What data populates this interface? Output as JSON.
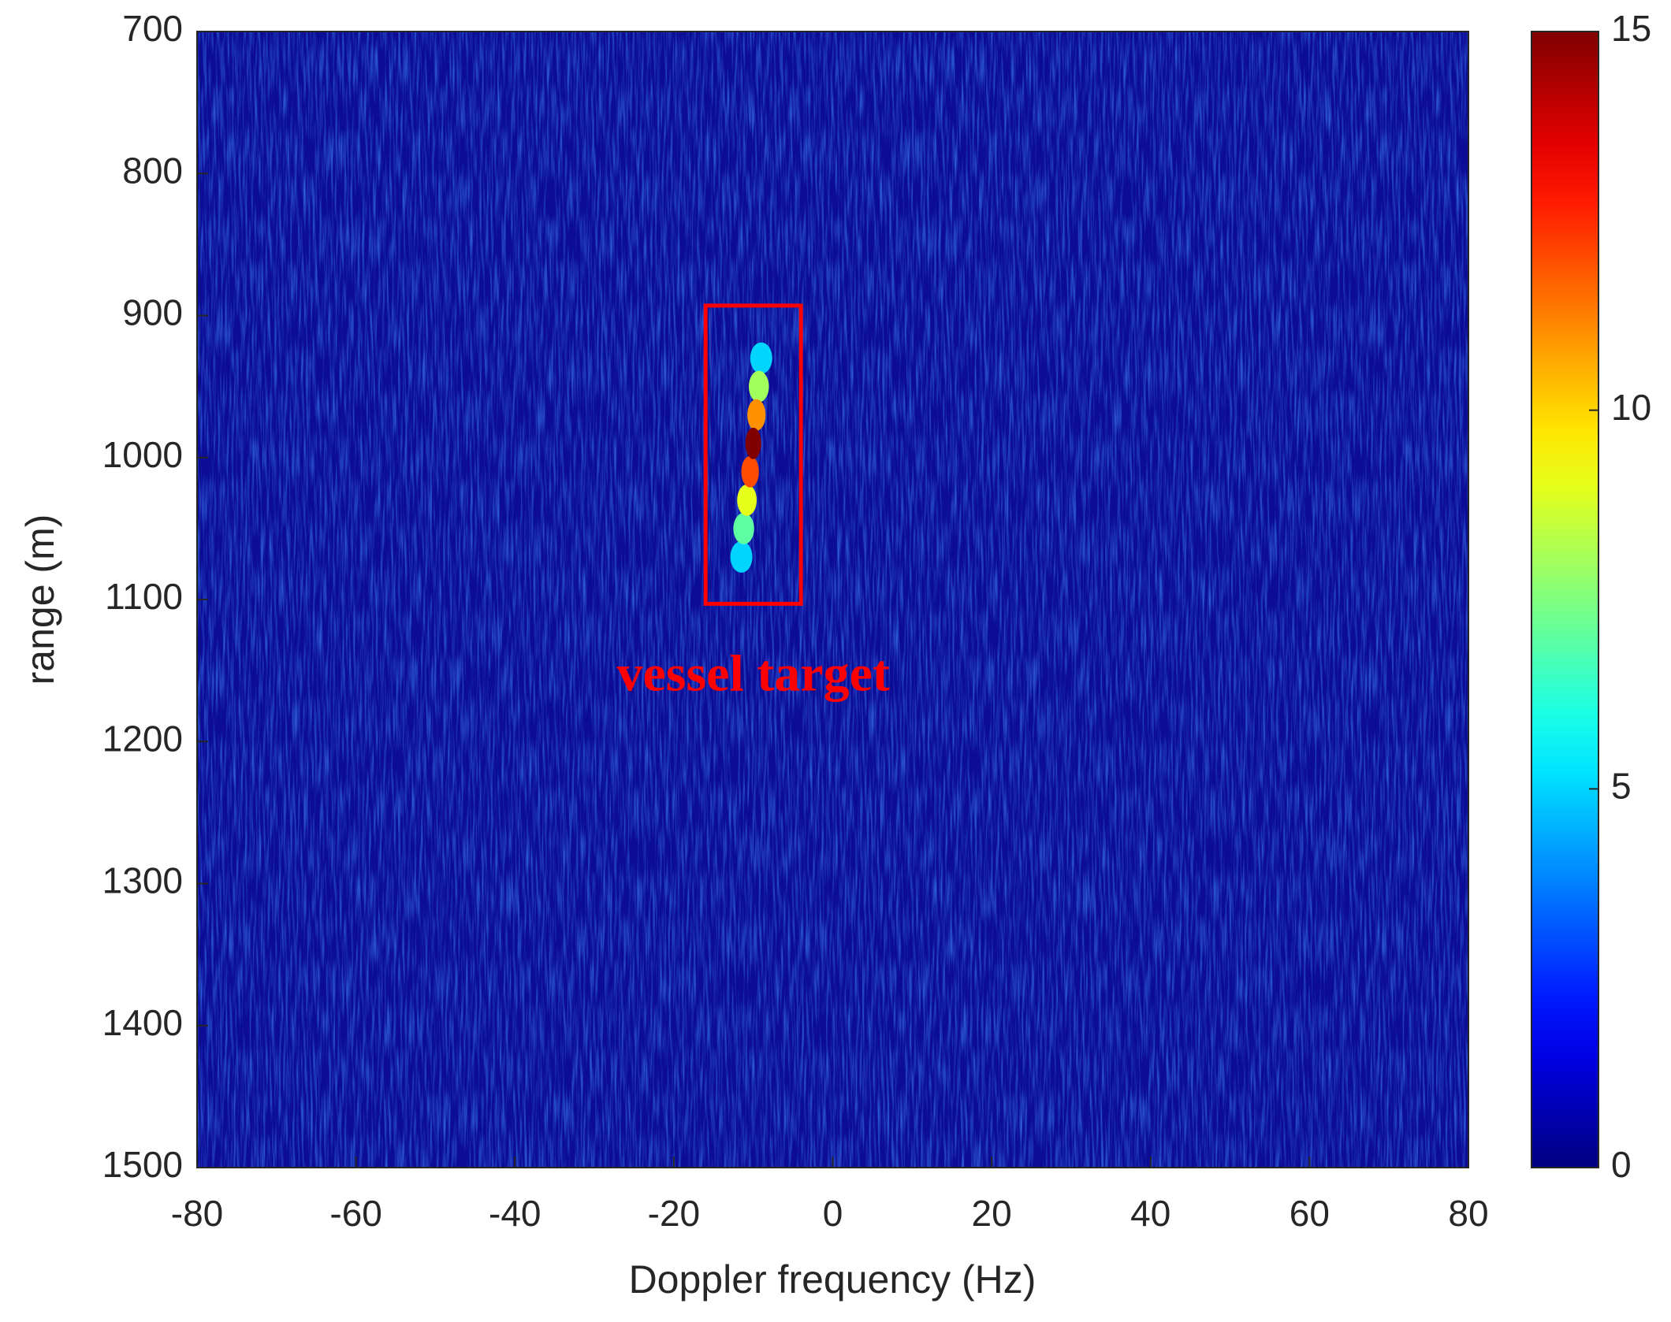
{
  "chart_data": {
    "type": "heatmap",
    "x_label": "Doppler frequency (Hz)",
    "y_label": "range (m)",
    "xlim": [
      -80,
      80
    ],
    "ylim": [
      700,
      1500
    ],
    "y_reversed": true,
    "xticks": [
      -80,
      -60,
      -40,
      -20,
      0,
      20,
      40,
      60,
      80
    ],
    "yticks": [
      700,
      800,
      900,
      1000,
      1100,
      1200,
      1300,
      1400,
      1500
    ],
    "colormap": "jet",
    "clim": [
      0,
      15
    ],
    "cticks": [
      0,
      5,
      10,
      15
    ],
    "x": [
      -9,
      -9.3,
      -9.6,
      -10,
      -10.4,
      -10.8,
      -11.2,
      -11.5
    ],
    "y": [
      930,
      950,
      970,
      990,
      1010,
      1030,
      1050,
      1070
    ],
    "values": [
      5,
      8,
      11,
      15,
      12,
      9,
      7,
      5
    ],
    "annotation": {
      "text": "vessel target",
      "box_x": [
        -16,
        -4
      ],
      "box_y": [
        893,
        1103
      ],
      "color": "#ff0000"
    }
  }
}
